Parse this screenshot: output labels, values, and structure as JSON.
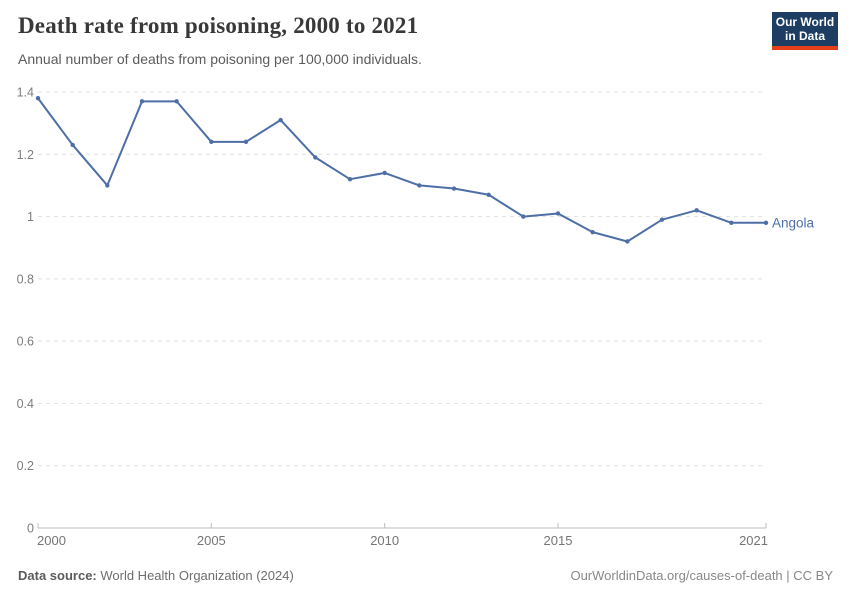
{
  "header": {
    "title": "Death rate from poisoning, 2000 to 2021",
    "subtitle": "Annual number of deaths from poisoning per 100,000 individuals.",
    "logo": {
      "line1": "Our World",
      "line2": "in Data",
      "bg_color": "#1d3d63",
      "accent_color": "#e63e19"
    }
  },
  "chart_data": {
    "type": "line",
    "title": "Death rate from poisoning, 2000 to 2021",
    "x": [
      2000,
      2001,
      2002,
      2003,
      2004,
      2005,
      2006,
      2007,
      2008,
      2009,
      2010,
      2011,
      2012,
      2013,
      2014,
      2015,
      2016,
      2017,
      2018,
      2019,
      2020,
      2021
    ],
    "series": [
      {
        "name": "Angola",
        "color": "#4e6fa6",
        "values": [
          1.38,
          1.23,
          1.1,
          1.37,
          1.37,
          1.24,
          1.24,
          1.31,
          1.19,
          1.12,
          1.14,
          1.1,
          1.09,
          1.07,
          1.0,
          1.01,
          0.95,
          0.92,
          0.99,
          1.02,
          0.98,
          0.98
        ]
      }
    ],
    "xlabel": "",
    "ylabel": "",
    "ylim": [
      0,
      1.4
    ],
    "xlim": [
      2000,
      2021
    ],
    "ytick_values": [
      0,
      0.2,
      0.4,
      0.6,
      0.8,
      1,
      1.2,
      1.4
    ],
    "ytick_labels": [
      "0",
      "0.2",
      "0.4",
      "0.6",
      "0.8",
      "1",
      "1.2",
      "1.4"
    ],
    "xtick_values": [
      2000,
      2005,
      2010,
      2015,
      2021
    ],
    "xtick_labels": [
      "2000",
      "2005",
      "2010",
      "2015",
      "2021"
    ],
    "grid": "horizontal-dashed",
    "legend_position": "end-of-line",
    "end_label": "Angola"
  },
  "footer": {
    "source_label": "Data source:",
    "source_text": " World Health Organization (2024)",
    "credit": "OurWorldinData.org/causes-of-death | CC BY"
  }
}
